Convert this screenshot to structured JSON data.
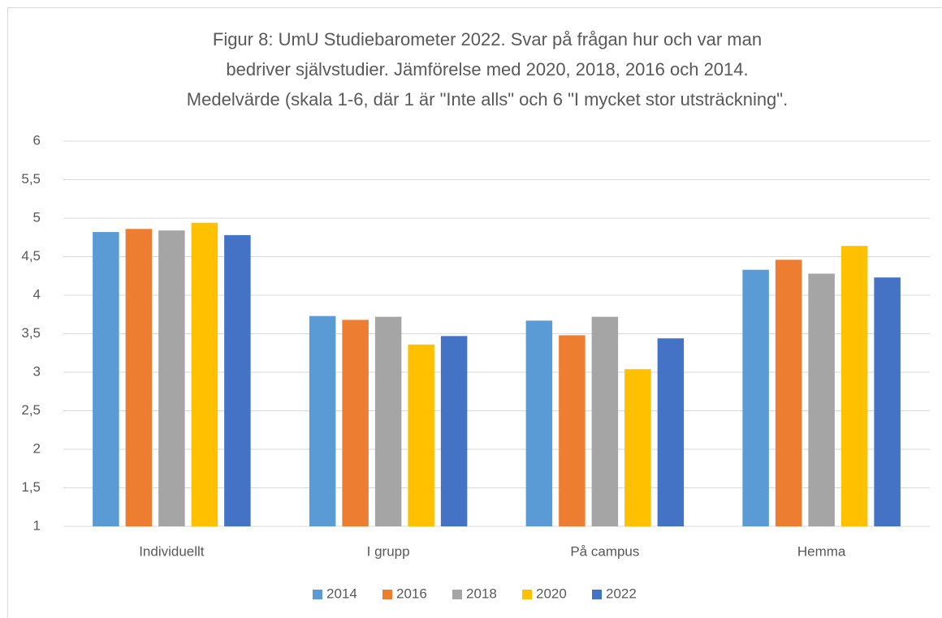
{
  "chart_data": {
    "type": "bar",
    "title": [
      "Figur 8: UmU Studiebarometer 2022. Svar på frågan hur och var man",
      "bedriver självstudier. Jämförelse med 2020, 2018, 2016 och 2014.",
      "Medelvärde (skala 1-6, där 1 är \"Inte alls\" och 6 \"I mycket stor utsträckning\"."
    ],
    "categories": [
      "Individuellt",
      "I grupp",
      "På campus",
      "Hemma"
    ],
    "series": [
      {
        "name": "2014",
        "color": "#5b9bd5",
        "values": [
          4.82,
          3.73,
          3.67,
          4.33
        ]
      },
      {
        "name": "2016",
        "color": "#ed7d31",
        "values": [
          4.86,
          3.68,
          3.48,
          4.46
        ]
      },
      {
        "name": "2018",
        "color": "#a5a5a5",
        "values": [
          4.84,
          3.72,
          3.72,
          4.28
        ]
      },
      {
        "name": "2020",
        "color": "#ffc000",
        "values": [
          4.94,
          3.36,
          3.04,
          4.64
        ]
      },
      {
        "name": "2022",
        "color": "#4472c4",
        "values": [
          4.78,
          3.47,
          3.44,
          4.23
        ]
      }
    ],
    "ylim": [
      1,
      6
    ],
    "yticks": [
      1,
      {
        "value": 1.5,
        "label": "1,5"
      },
      2,
      {
        "value": 2.5,
        "label": "2,5"
      },
      3,
      {
        "value": 3.5,
        "label": "3,5"
      },
      4,
      {
        "value": 4.5,
        "label": "4,5"
      },
      5,
      {
        "value": 5.5,
        "label": "5,5"
      },
      6
    ],
    "grid": true,
    "legend": "bottom"
  }
}
